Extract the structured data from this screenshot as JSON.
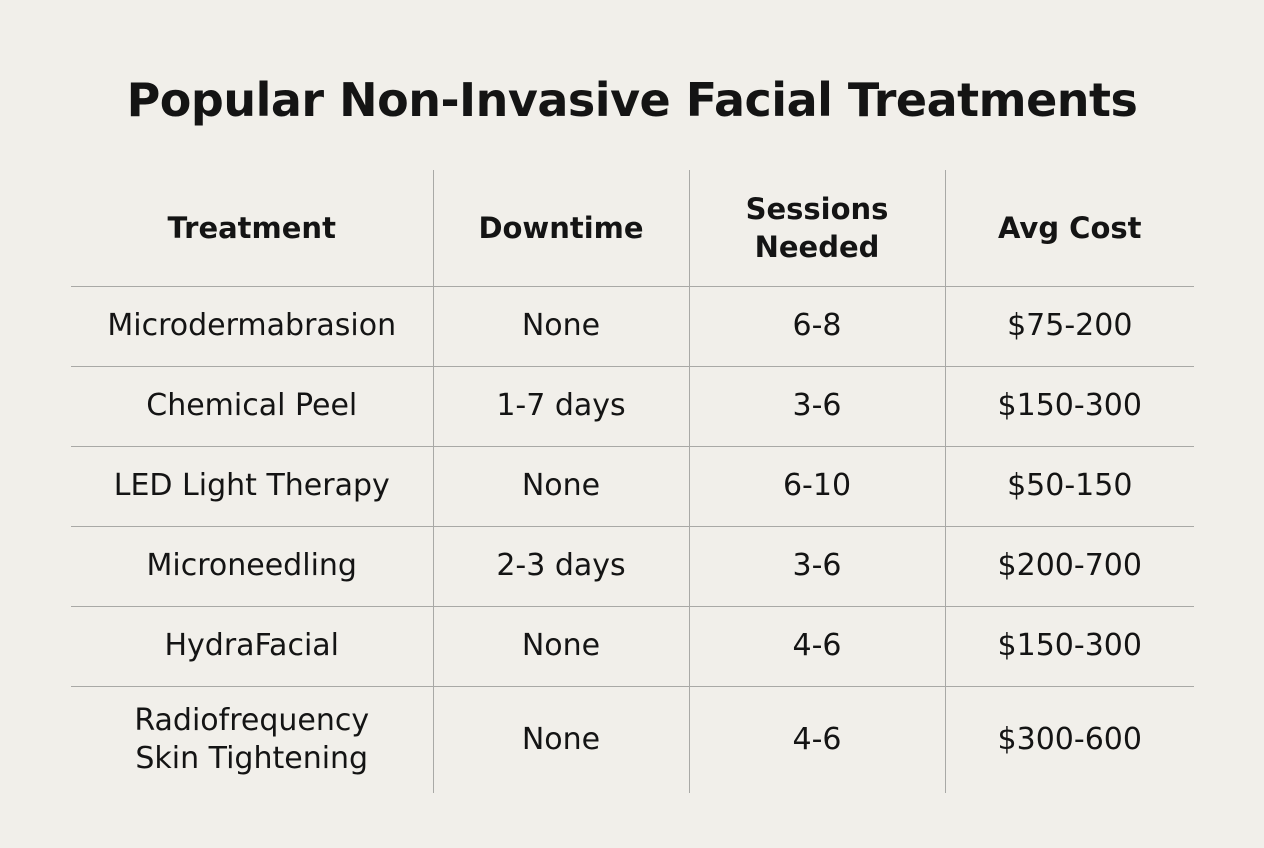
{
  "title": "Popular Non-Invasive Facial Treatments",
  "table": {
    "headers": [
      "Treatment",
      "Downtime",
      "Sessions\nNeeded",
      "Avg Cost"
    ],
    "rows": [
      [
        "Microdermabrasion",
        "None",
        "6-8",
        "$75-200"
      ],
      [
        "Chemical Peel",
        "1-7 days",
        "3-6",
        "$150-300"
      ],
      [
        "LED Light Therapy",
        "None",
        "6-10",
        "$50-150"
      ],
      [
        "Microneedling",
        "2-3 days",
        "3-6",
        "$200-700"
      ],
      [
        "HydraFacial",
        "None",
        "4-6",
        "$150-300"
      ],
      [
        "Radiofrequency\nSkin Tightening",
        "None",
        "4-6",
        "$300-600"
      ]
    ]
  }
}
